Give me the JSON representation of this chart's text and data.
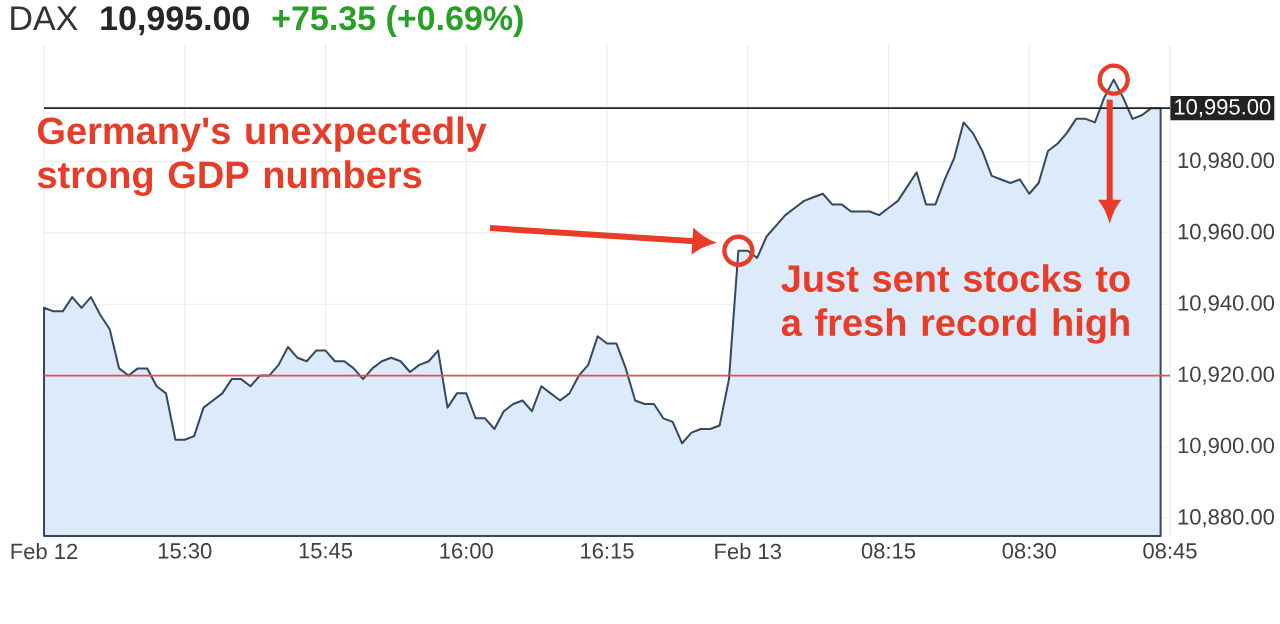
{
  "chart_data": {
    "type": "area",
    "title": "DAX",
    "annotations": [
      "10,995.00",
      "+75.35 (+0.69%)",
      "Germany's unexpectedly strong GDP numbers",
      "Just sent stocks to a fresh record high"
    ],
    "categories": [
      "Feb 12",
      null,
      null,
      null,
      null,
      null,
      null,
      null,
      null,
      null,
      null,
      null,
      null,
      null,
      null,
      "15:30",
      null,
      null,
      null,
      null,
      null,
      null,
      null,
      null,
      null,
      null,
      null,
      null,
      null,
      null,
      "15:45",
      null,
      null,
      null,
      null,
      null,
      null,
      null,
      null,
      null,
      null,
      null,
      null,
      null,
      null,
      "16:00",
      null,
      null,
      null,
      null,
      null,
      null,
      null,
      null,
      null,
      null,
      null,
      null,
      null,
      null,
      "16:15",
      null,
      null,
      null,
      null,
      null,
      null,
      null,
      null,
      null,
      null,
      null,
      null,
      null,
      null,
      "Feb 13",
      null,
      null,
      null,
      null,
      null,
      null,
      null,
      null,
      null,
      null,
      null,
      null,
      null,
      null,
      "08:15",
      null,
      null,
      null,
      null,
      null,
      null,
      null,
      null,
      null,
      null,
      null,
      null,
      null,
      null,
      "08:30",
      null,
      null,
      null,
      null,
      null,
      null,
      null,
      null,
      null,
      null,
      null,
      null,
      null,
      null,
      "08:45"
    ],
    "series": [
      {
        "color": "#34495e",
        "values": [
          10939,
          10938,
          10938,
          10942,
          10939,
          10942,
          10937,
          10933,
          10922,
          10920,
          10922,
          10922,
          10917,
          10915,
          10902,
          10902,
          10903,
          10911,
          10913,
          10915,
          10919,
          10919,
          10917,
          10920,
          10920,
          10923,
          10928,
          10925,
          10924,
          10927,
          10927,
          10924,
          10924,
          10922,
          10919,
          10922,
          10924,
          10925,
          10924,
          10921,
          10923,
          10924,
          10927,
          10911,
          10915,
          10915,
          10908,
          10908,
          10905,
          10910,
          10912,
          10913,
          10910,
          10917,
          10915,
          10913,
          10915,
          10920,
          10923,
          10931,
          10929,
          10929,
          10922,
          10913,
          10912,
          10912,
          10908,
          10907,
          10901,
          10904,
          10905,
          10905,
          10906,
          10919,
          10955,
          10955,
          10953,
          10959,
          10962,
          10965,
          10967,
          10969,
          10970,
          10971,
          10968,
          10968,
          10966,
          10966,
          10966,
          10965,
          10967,
          10969,
          10973,
          10977,
          10968,
          10968,
          10975,
          10981,
          10991,
          10988,
          10983,
          10976,
          10975,
          10974,
          10975,
          10971,
          10974,
          10983,
          10985,
          10988,
          10992,
          10992,
          10991,
          10998,
          11003,
          10998,
          10992,
          10993,
          10995,
          10995,
          null
        ]
      }
    ],
    "ylim": [
      10875,
      11013
    ],
    "yticks": [
      {
        "value": 10880,
        "label": "10,880.00"
      },
      {
        "value": 10900,
        "label": "10,900.00"
      },
      {
        "value": 10920,
        "label": "10,920.00"
      },
      {
        "value": 10940,
        "label": "10,940.00"
      },
      {
        "value": 10960,
        "label": "10,960.00"
      },
      {
        "value": 10980,
        "label": "10,980.00"
      }
    ],
    "ref_lines": [
      {
        "axis": "y",
        "value": 10995,
        "label": "10,995.00",
        "color": "#222222"
      },
      {
        "axis": "y",
        "value": 10920,
        "label": null,
        "color": "#d9534f"
      }
    ],
    "grid": true
  }
}
